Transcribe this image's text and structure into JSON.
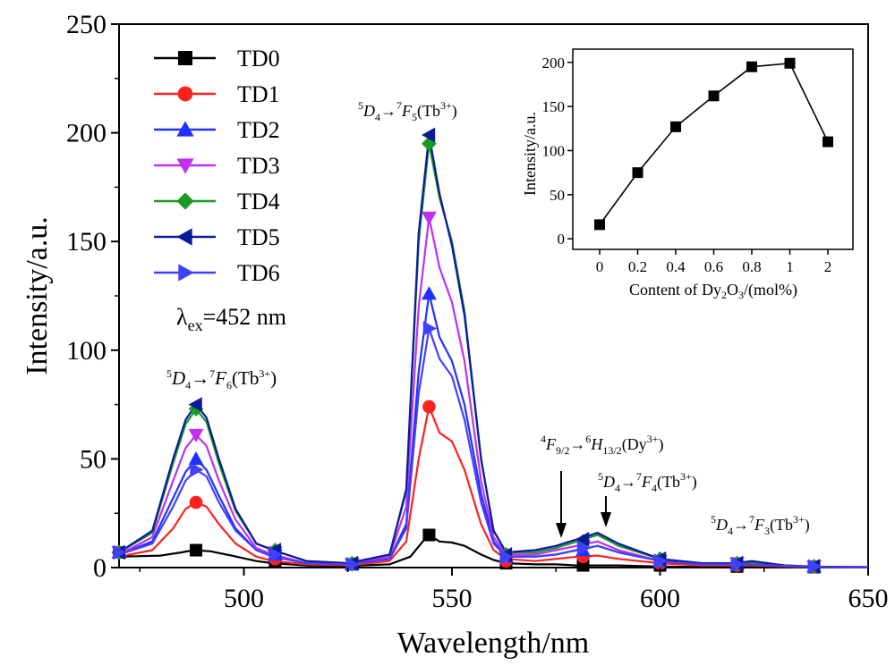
{
  "chart_data": [
    {
      "type": "line",
      "xlabel": "Wavelength/nm",
      "ylabel": "Intensity/a.u.",
      "xlim": [
        470,
        650
      ],
      "ylim": [
        0,
        250
      ],
      "xticks": [
        "500",
        "550",
        "600",
        "650"
      ],
      "yticks": [
        "0",
        "50",
        "100",
        "150",
        "200",
        "250"
      ],
      "legend_position": "top-left",
      "excitation": {
        "prefix": "λ",
        "sub": "ex",
        "value": "=452 nm"
      },
      "series": [
        {
          "name": "TD0",
          "color": "#000000",
          "marker": "square",
          "x": [
            470,
            480,
            485,
            488,
            492,
            497,
            503,
            507,
            515,
            525,
            535,
            540,
            543,
            544.5,
            547,
            550,
            553,
            557,
            560,
            563,
            570,
            575,
            580,
            585,
            590,
            600,
            610,
            618,
            622,
            630,
            637,
            650
          ],
          "y": [
            5,
            5.5,
            7,
            8,
            7.5,
            5.5,
            3,
            2,
            1,
            0.8,
            1.5,
            5,
            12,
            15,
            12,
            11.5,
            10,
            6,
            3.5,
            2,
            1.5,
            1.5,
            1,
            1,
            1,
            0.5,
            0.3,
            0.3,
            0.3,
            0.2,
            0.1,
            0.1
          ],
          "markers_x": [
            470,
            488.5,
            507.5,
            526,
            544.5,
            563,
            581.5,
            600,
            618.5,
            637
          ],
          "markers_y": [
            7,
            8,
            3,
            1.5,
            15,
            2,
            1,
            1,
            0.5,
            0.2
          ]
        },
        {
          "name": "TD1",
          "color": "#ff2020",
          "marker": "circle",
          "x": [
            470,
            478,
            483,
            486,
            488.5,
            491,
            494,
            498,
            503,
            507,
            515,
            525,
            535,
            539,
            542,
            544.5,
            547,
            550,
            553,
            557,
            560,
            563,
            570,
            575,
            580,
            585,
            590,
            600,
            610,
            618,
            622,
            630,
            637,
            650
          ],
          "y": [
            5,
            8,
            18,
            27,
            30,
            28,
            20,
            11,
            5,
            3,
            1.5,
            1,
            3,
            12,
            50,
            74,
            62,
            58,
            45,
            20,
            8,
            4,
            3,
            4,
            5,
            5.5,
            4,
            2,
            1,
            1,
            1,
            0.5,
            0.2,
            0.1
          ],
          "markers_x": [
            470,
            488.5,
            507.5,
            526,
            544.5,
            563,
            581.5,
            600,
            618.5,
            637
          ],
          "markers_y": [
            7,
            30,
            4,
            1.5,
            74,
            3,
            5,
            2,
            1,
            0.3
          ]
        },
        {
          "name": "TD2",
          "color": "#2030ff",
          "marker": "triangle-up",
          "x": [
            470,
            478,
            483,
            486,
            488.5,
            491,
            494,
            498,
            503,
            507,
            515,
            525,
            535,
            539,
            542,
            544.5,
            547,
            550,
            553,
            557,
            560,
            563,
            570,
            575,
            580,
            585,
            590,
            600,
            610,
            618,
            622,
            630,
            637,
            650
          ],
          "y": [
            6,
            12,
            32,
            44,
            50,
            45,
            33,
            18,
            8,
            5,
            2,
            1.5,
            4,
            20,
            90,
            126,
            106,
            95,
            75,
            34,
            12,
            5,
            5,
            6,
            8,
            10,
            7,
            3,
            1.5,
            1.5,
            1.5,
            0.8,
            0.3,
            0.2
          ],
          "markers_x": [
            470,
            488.5,
            507.5,
            526,
            544.5,
            563,
            581.5,
            600,
            618.5,
            637
          ],
          "markers_y": [
            7,
            50,
            6,
            1.5,
            126,
            5,
            8,
            3,
            1.5,
            0.5
          ]
        },
        {
          "name": "TD3",
          "color": "#c030f0",
          "marker": "triangle-down",
          "x": [
            470,
            478,
            483,
            486,
            488.5,
            491,
            494,
            498,
            503,
            507,
            515,
            525,
            535,
            539,
            542,
            544.5,
            547,
            550,
            553,
            557,
            560,
            563,
            570,
            575,
            580,
            585,
            590,
            600,
            610,
            618,
            622,
            630,
            637,
            650
          ],
          "y": [
            6,
            14,
            40,
            55,
            61,
            56,
            40,
            22,
            9,
            6,
            2,
            1.5,
            5,
            28,
            120,
            161,
            138,
            122,
            95,
            40,
            14,
            6,
            6,
            8,
            10,
            12,
            8,
            3,
            1.5,
            2,
            2,
            1,
            0.3,
            0.2
          ],
          "markers_x": [
            470,
            488.5,
            507.5,
            526,
            544.5,
            563,
            581.5,
            600,
            618.5,
            637
          ],
          "markers_y": [
            7,
            61,
            7,
            1.5,
            161,
            5,
            10,
            3,
            2,
            0.5
          ]
        },
        {
          "name": "TD4",
          "color": "#1a9a20",
          "marker": "diamond",
          "x": [
            470,
            478,
            483,
            486,
            488.5,
            491,
            494,
            498,
            503,
            507,
            515,
            525,
            535,
            539,
            542,
            544.5,
            547,
            550,
            553,
            557,
            560,
            563,
            570,
            575,
            580,
            585,
            590,
            600,
            610,
            618,
            622,
            630,
            637,
            650
          ],
          "y": [
            7,
            16,
            48,
            66,
            73,
            67,
            48,
            26,
            11,
            8,
            3,
            2,
            6,
            35,
            150,
            195,
            170,
            150,
            118,
            50,
            17,
            7,
            7,
            9,
            12,
            15,
            10,
            4,
            2,
            2,
            2.5,
            1,
            0.4,
            0.2
          ],
          "markers_x": [
            470,
            488.5,
            507.5,
            526,
            544.5,
            563,
            581.5,
            600,
            618.5,
            637
          ],
          "markers_y": [
            7,
            73,
            8,
            2,
            195,
            6,
            12,
            4,
            2,
            0.6
          ]
        },
        {
          "name": "TD5",
          "color": "#0c1a9a",
          "marker": "triangle-left",
          "x": [
            470,
            478,
            483,
            486,
            488.5,
            491,
            494,
            498,
            503,
            507,
            515,
            525,
            535,
            539,
            542,
            544.5,
            547,
            550,
            553,
            557,
            560,
            563,
            570,
            575,
            580,
            585,
            590,
            600,
            610,
            618,
            622,
            630,
            637,
            650
          ],
          "y": [
            7,
            17,
            50,
            68,
            75,
            69,
            50,
            27,
            11,
            8,
            3,
            2,
            6,
            36,
            154,
            199,
            172,
            148,
            116,
            50,
            17,
            7,
            8,
            10,
            13,
            16,
            11,
            4,
            2,
            2,
            3,
            1,
            0.4,
            0.2
          ],
          "markers_x": [
            470,
            488.5,
            507.5,
            526,
            544.5,
            563,
            581.5,
            600,
            618.5,
            637
          ],
          "markers_y": [
            7,
            75,
            8,
            2,
            199,
            6,
            13,
            4,
            2,
            0.6
          ]
        },
        {
          "name": "TD6",
          "color": "#4040ff",
          "marker": "triangle-right",
          "x": [
            470,
            478,
            483,
            486,
            488.5,
            491,
            494,
            498,
            503,
            507,
            515,
            525,
            535,
            539,
            542,
            544.5,
            547,
            550,
            553,
            557,
            560,
            563,
            570,
            575,
            580,
            585,
            590,
            600,
            610,
            618,
            622,
            630,
            637,
            650
          ],
          "y": [
            6,
            11,
            28,
            40,
            45,
            42,
            30,
            17,
            8,
            5,
            2,
            1.5,
            4,
            18,
            80,
            110,
            96,
            88,
            68,
            30,
            11,
            5,
            5,
            6,
            8,
            10,
            7,
            3,
            1.5,
            1.5,
            1.5,
            0.8,
            0.3,
            0.2
          ],
          "markers_x": [
            470,
            488.5,
            507.5,
            526,
            544.5,
            563,
            581.5,
            600,
            618.5,
            637
          ],
          "markers_y": [
            7,
            45,
            6,
            1.5,
            110,
            5,
            9,
            3,
            1.5,
            0.5
          ]
        }
      ],
      "annotations": [
        {
          "id": "f6",
          "sup1": "5",
          "main1": "D",
          "sub1": "4",
          "arrow": "→",
          "sup2": "7",
          "main2": "F",
          "sub2": "6",
          "tail": "(Tb",
          "ion": "3+",
          "close": ")"
        },
        {
          "id": "f5",
          "sup1": "5",
          "main1": "D",
          "sub1": "4",
          "arrow": "→",
          "sup2": "7",
          "main2": "F",
          "sub2": "5",
          "tail": "(Tb",
          "ion": "3+",
          "close": ")"
        },
        {
          "id": "dy",
          "sup1": "4",
          "main1": "F",
          "sub1": "9/2",
          "arrow": "→",
          "sup2": "6",
          "main2": "H",
          "sub2": "13/2",
          "tail": "(Dy",
          "ion": "3+",
          "close": ")"
        },
        {
          "id": "f4",
          "sup1": "5",
          "main1": "D",
          "sub1": "4",
          "arrow": "→",
          "sup2": "7",
          "main2": "F",
          "sub2": "4",
          "tail": "(Tb",
          "ion": "3+",
          "close": ")"
        },
        {
          "id": "f3",
          "sup1": "5",
          "main1": "D",
          "sub1": "4",
          "arrow": "→",
          "sup2": "7",
          "main2": "F",
          "sub2": "3",
          "tail": "(Tb",
          "ion": "3+",
          "close": ")"
        }
      ]
    },
    {
      "type": "line",
      "xlabel": {
        "pre": "Content of Dy",
        "sub1": "2",
        "mid": "O",
        "sub2": "3",
        "post": "/(mol%)"
      },
      "ylabel": "Intensity/a.u.",
      "categories": [
        "0",
        "0.2",
        "0.4",
        "0.6",
        "0.8",
        "1",
        "2"
      ],
      "values": [
        16,
        75,
        127,
        162,
        195,
        199,
        110
      ],
      "yticks": [
        "0",
        "50",
        "100",
        "150",
        "200"
      ],
      "ylim": [
        -12,
        215
      ]
    }
  ]
}
